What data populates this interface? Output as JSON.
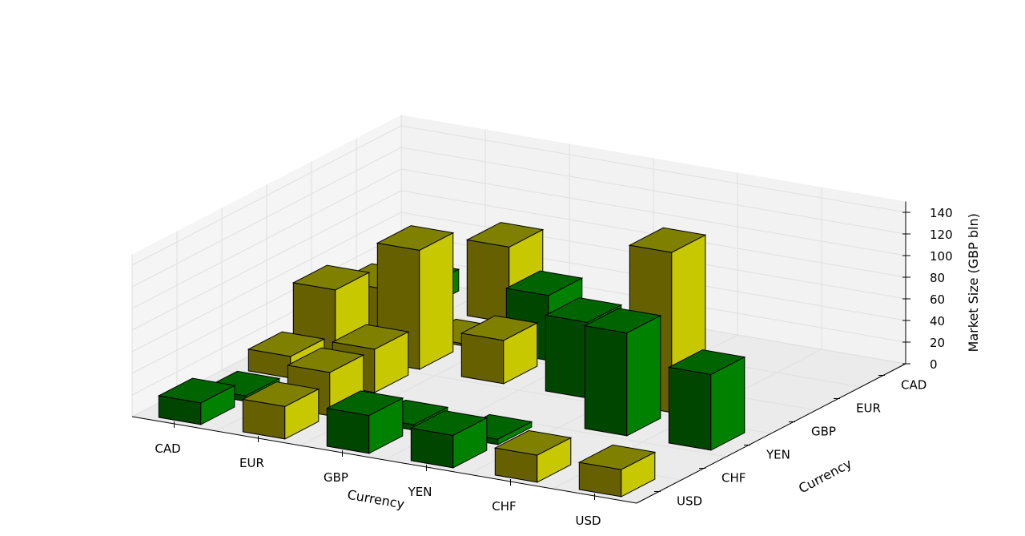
{
  "chart_data": {
    "type": "bar3d",
    "x_categories": [
      "USD",
      "CHF",
      "YEN",
      "GBP",
      "EUR",
      "CAD"
    ],
    "y_categories": [
      "USD",
      "CHF",
      "YEN",
      "GBP",
      "EUR",
      "CAD"
    ],
    "xlabel": "Currency",
    "ylabel": "Currency",
    "zlabel": "Market Size (GBP bln)",
    "zticks": [
      0,
      20,
      40,
      60,
      80,
      100,
      120,
      140
    ],
    "zlim": [
      0,
      150
    ],
    "colors": {
      "green_top": "#006400",
      "green_front": "#004600",
      "green_side": "#008200",
      "olive_top": "#808000",
      "olive_front": "#666000",
      "olive_side": "#c8c800",
      "pane_back": "#f2f2f2",
      "pane_side": "#f5f5f5",
      "pane_floor": "#ebebeb",
      "grid": "#e0e0e0"
    },
    "bars": [
      {
        "x": "USD",
        "y": "YEN",
        "z": 70,
        "color": "green"
      },
      {
        "x": "USD",
        "y": "USD",
        "z": 25,
        "color": "olive"
      },
      {
        "x": "CHF",
        "y": "YEN",
        "z": 95,
        "color": "green"
      },
      {
        "x": "CHF",
        "y": "GBP",
        "z": 148,
        "color": "olive"
      },
      {
        "x": "CHF",
        "y": "USD",
        "z": 25,
        "color": "olive"
      },
      {
        "x": "YEN",
        "y": "GBP",
        "z": 70,
        "color": "green"
      },
      {
        "x": "YEN",
        "y": "USD",
        "z": 30,
        "color": "green"
      },
      {
        "x": "YEN",
        "y": "CHF",
        "z": 5,
        "color": "green"
      },
      {
        "x": "GBP",
        "y": "GBP",
        "z": 40,
        "color": "olive"
      },
      {
        "x": "GBP",
        "y": "USD",
        "z": 35,
        "color": "green"
      },
      {
        "x": "GBP",
        "y": "CHF",
        "z": 5,
        "color": "green"
      },
      {
        "x": "GBP",
        "y": "EUR",
        "z": 60,
        "color": "green"
      },
      {
        "x": "EUR",
        "y": "GBP",
        "z": 110,
        "color": "olive"
      },
      {
        "x": "EUR",
        "y": "CHF",
        "z": 40,
        "color": "olive"
      },
      {
        "x": "EUR",
        "y": "YEN",
        "z": 40,
        "color": "olive"
      },
      {
        "x": "EUR",
        "y": "USD",
        "z": 30,
        "color": "olive"
      },
      {
        "x": "EUR",
        "y": "EUR",
        "z": 2,
        "color": "olive"
      },
      {
        "x": "EUR",
        "y": "CAD",
        "z": 70,
        "color": "olive"
      },
      {
        "x": "CAD",
        "y": "GBP",
        "z": 60,
        "color": "olive"
      },
      {
        "x": "CAD",
        "y": "EUR",
        "z": 40,
        "color": "olive"
      },
      {
        "x": "CAD",
        "y": "YEN",
        "z": 20,
        "color": "olive"
      },
      {
        "x": "CAD",
        "y": "USD",
        "z": 20,
        "color": "green"
      },
      {
        "x": "CAD",
        "y": "CHF",
        "z": 5,
        "color": "green"
      },
      {
        "x": "CAD",
        "y": "CAD",
        "z": 20,
        "color": "green"
      }
    ]
  }
}
